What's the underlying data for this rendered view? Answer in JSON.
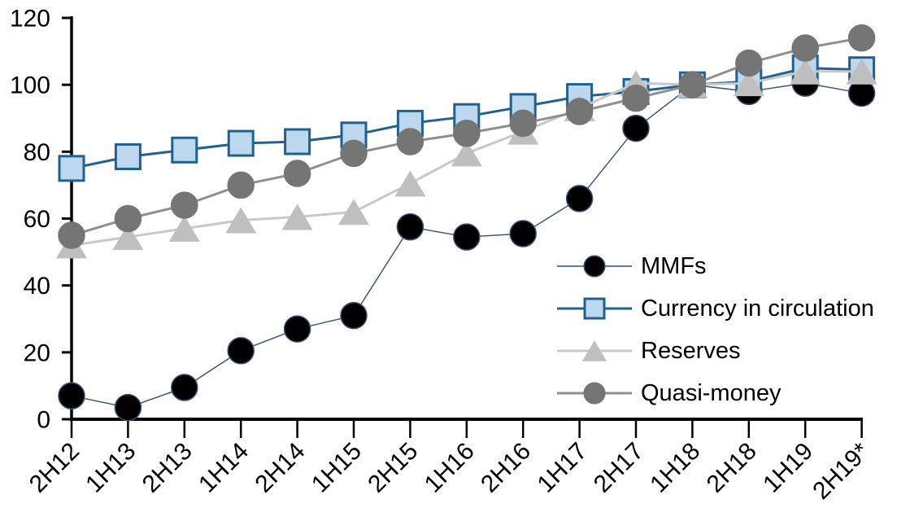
{
  "chart_data": {
    "type": "line",
    "title": "",
    "xlabel": "",
    "ylabel": "",
    "grid": false,
    "legend_position": "inside-right",
    "ylim": [
      0,
      120
    ],
    "y_ticks": [
      0,
      20,
      40,
      60,
      80,
      100,
      120
    ],
    "categories": [
      "2H12",
      "1H13",
      "2H13",
      "1H14",
      "2H14",
      "1H15",
      "2H15",
      "1H16",
      "2H16",
      "1H17",
      "2H17",
      "1H18",
      "2H18",
      "1H19",
      "2H19*"
    ],
    "series": [
      {
        "name": "MMFs",
        "marker": "circle",
        "marker_fill": "#000000",
        "marker_stroke": "#3a5070",
        "line_color": "#2e4d78",
        "line_width": 1.4,
        "values": [
          7,
          3.5,
          9.5,
          20.5,
          27,
          31,
          57.5,
          54.5,
          55.5,
          66,
          87,
          100,
          98,
          100.5,
          97.5
        ]
      },
      {
        "name": "Currency in circulation",
        "marker": "square",
        "marker_fill": "#bdd7ee",
        "marker_stroke": "#20618e",
        "line_color": "#20618e",
        "line_width": 3,
        "values": [
          75,
          78.5,
          80.5,
          82.5,
          83,
          85,
          88.5,
          90.5,
          93.5,
          96.5,
          98,
          100,
          101,
          105,
          104.5
        ]
      },
      {
        "name": "Reserves",
        "marker": "triangle",
        "marker_fill": "#bfbfbf",
        "marker_stroke": "#bfbfbf",
        "line_color": "#c8c8c8",
        "line_width": 3,
        "values": [
          52,
          54.5,
          57,
          59.5,
          60.5,
          62,
          70.5,
          79.5,
          86,
          93,
          100.5,
          100,
          100.5,
          104,
          104
        ]
      },
      {
        "name": "Quasi-money",
        "marker": "circle",
        "marker_fill": "#757575",
        "marker_stroke": "#757575",
        "line_color": "#8f8f8f",
        "line_width": 3,
        "values": [
          55,
          60,
          64,
          70,
          73.5,
          79.5,
          83,
          85.5,
          88.5,
          92,
          96,
          100,
          106.5,
          111,
          114
        ]
      }
    ],
    "axis_color": "#000000"
  }
}
